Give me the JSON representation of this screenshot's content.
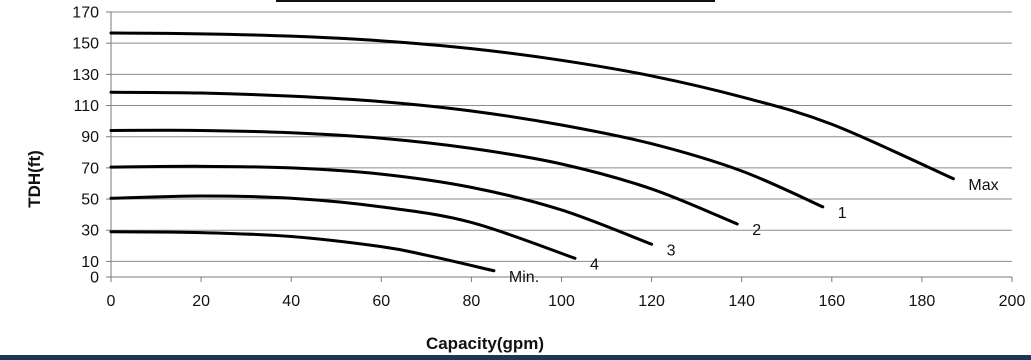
{
  "chart_data": {
    "type": "line",
    "title": "",
    "xlabel": "Capacity(gpm)",
    "ylabel": "TDH(ft)",
    "xlim": [
      0,
      200
    ],
    "ylim": [
      0,
      170
    ],
    "x_ticks": [
      0,
      20,
      40,
      60,
      80,
      100,
      120,
      140,
      160,
      180,
      200
    ],
    "y_ticks": [
      0,
      10,
      30,
      50,
      70,
      90,
      110,
      130,
      150,
      170
    ],
    "grid": true,
    "legend": "none",
    "line_color": "#000000",
    "grid_color": "#8c8c8c",
    "series": [
      {
        "name": "Max",
        "x": [
          0,
          20,
          40,
          60,
          80,
          100,
          120,
          140,
          160,
          187
        ],
        "y": [
          156.5,
          156,
          154.5,
          151.5,
          146.5,
          139,
          129,
          115.5,
          98,
          63
        ]
      },
      {
        "name": "1",
        "x": [
          0,
          20,
          40,
          60,
          80,
          100,
          120,
          140,
          158
        ],
        "y": [
          118.5,
          118,
          116,
          112.5,
          106.5,
          97.5,
          85.5,
          68,
          45
        ]
      },
      {
        "name": "2",
        "x": [
          0,
          20,
          40,
          60,
          80,
          100,
          120,
          139
        ],
        "y": [
          94,
          94,
          92.5,
          89,
          82.5,
          72.5,
          56.5,
          34
        ]
      },
      {
        "name": "3",
        "x": [
          0,
          20,
          40,
          60,
          80,
          100,
          120
        ],
        "y": [
          70.5,
          71,
          70,
          66,
          57.5,
          43,
          21
        ]
      },
      {
        "name": "4",
        "x": [
          0,
          20,
          40,
          60,
          80,
          103
        ],
        "y": [
          50.5,
          52,
          50.5,
          45,
          35,
          12
        ]
      },
      {
        "name": "Min.",
        "x": [
          0,
          20,
          40,
          60,
          70,
          85
        ],
        "y": [
          29,
          28.5,
          26,
          19.5,
          14,
          4
        ]
      }
    ]
  }
}
